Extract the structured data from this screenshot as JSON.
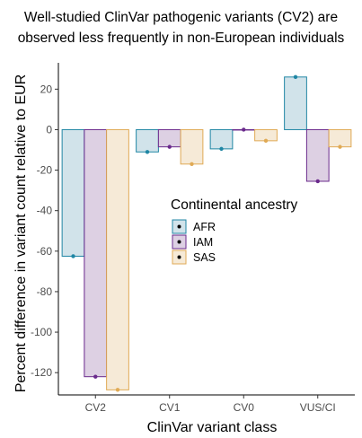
{
  "chart_data": {
    "type": "bar",
    "title_lines": [
      "Well-studied ClinVar pathogenic variants (CV2) are",
      "observed less frequently in non-European individuals"
    ],
    "xlabel": "ClinVar variant class",
    "ylabel": "Percent difference in variant count relative to EUR",
    "categories": [
      "CV2",
      "CV1",
      "CV0",
      "VUS/CI"
    ],
    "ylim": [
      -131,
      33
    ],
    "yticks": [
      20,
      0,
      -20,
      -40,
      -60,
      -80,
      -100,
      -120
    ],
    "grid": false,
    "legend": {
      "title": "Continental ancestry",
      "placement": "center-right"
    },
    "series": [
      {
        "name": "AFR",
        "fill": "#d1e3ea",
        "stroke": "#1f86a4",
        "values": [
          -62.5,
          -11,
          -9.5,
          26
        ]
      },
      {
        "name": "IAM",
        "fill": "#ddd0e3",
        "stroke": "#6a2a8c",
        "values": [
          -122,
          -8.5,
          0,
          -25.5
        ]
      },
      {
        "name": "SAS",
        "fill": "#f6ead7",
        "stroke": "#e0aa55",
        "values": [
          -128.5,
          -17,
          -5.5,
          -8.5
        ]
      }
    ]
  }
}
